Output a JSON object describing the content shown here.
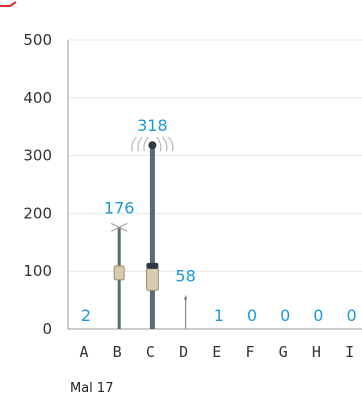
{
  "colors": {
    "label": "#1a9ad6",
    "stem": "#5a6b70",
    "head": "#2f3b40",
    "gauge": "#d8cbb0",
    "grid": "#e6e6e6",
    "axis": "#999999",
    "accent": "#d9302c"
  },
  "chart_data": {
    "type": "bar",
    "categories": [
      "A",
      "B",
      "C",
      "D",
      "E",
      "F",
      "G",
      "H",
      "I"
    ],
    "values": [
      2,
      176,
      318,
      58,
      1,
      0,
      0,
      0,
      0
    ],
    "ylim": [
      0,
      500
    ],
    "yticks": [
      0,
      100,
      200,
      300,
      400,
      500
    ],
    "grid": true,
    "legend": "none",
    "footer": "Mal 17"
  }
}
